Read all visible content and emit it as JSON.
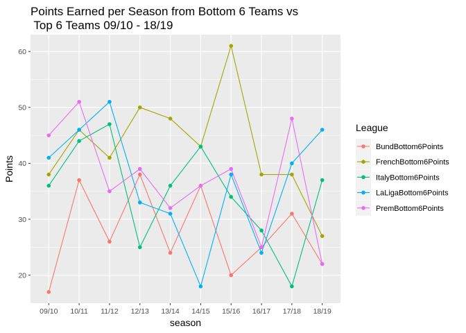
{
  "chart_data": {
    "type": "line",
    "title_lines": [
      "Points Earned per Season from Bottom 6 Teams vs",
      " Top 6 Teams 09/10 - 18/19"
    ],
    "xlabel": "season",
    "ylabel": "Points",
    "categories": [
      "09/10",
      "10/11",
      "11/12",
      "12/13",
      "13/14",
      "14/15",
      "15/16",
      "16/17",
      "17/18",
      "18/19"
    ],
    "ylim": [
      15,
      63
    ],
    "yticks": [
      20,
      30,
      40,
      50,
      60
    ],
    "grid": true,
    "legend": {
      "title": "League",
      "position": "right"
    },
    "series": [
      {
        "name": "BundBottom6Points",
        "color": "#F8766D",
        "values": [
          17,
          37,
          26,
          38,
          24,
          36,
          20,
          25,
          31,
          22
        ]
      },
      {
        "name": "FrenchBottom6Points",
        "color": "#A3A500",
        "values": [
          38,
          46,
          41,
          50,
          48,
          43,
          61,
          38,
          38,
          27
        ]
      },
      {
        "name": "ItalyBottom6Points",
        "color": "#00BF7D",
        "values": [
          36,
          44,
          47,
          25,
          36,
          43,
          34,
          28,
          18,
          37
        ]
      },
      {
        "name": "LaLigaBottom6Points",
        "color": "#00B0F6",
        "values": [
          41,
          46,
          51,
          33,
          31,
          18,
          38,
          24,
          40,
          46
        ]
      },
      {
        "name": "PremBottom6Points",
        "color": "#E76BF3",
        "values": [
          45,
          51,
          35,
          39,
          32,
          36,
          39,
          25,
          48,
          22
        ]
      }
    ]
  }
}
